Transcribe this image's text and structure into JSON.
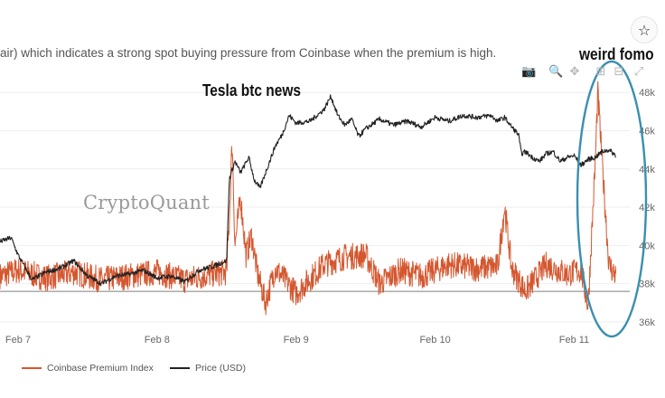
{
  "caption": "air) which indicates a strong spot buying pressure from Coinbase when the premium is high.",
  "star_icon": "☆",
  "annotations": {
    "tesla": "Tesla btc news",
    "fomo": "weird fomo"
  },
  "watermark": "CryptoQuant",
  "modebar": [
    "camera-icon",
    "zoom-icon",
    "pan-icon",
    "zoom-in-icon",
    "zoom-out-icon",
    "autoscale-icon"
  ],
  "colors": {
    "premium": "#d4572f",
    "price": "#222222",
    "baseline": "#7f7f7f",
    "oval": "#3a8fb0",
    "axis_text": "#666666"
  },
  "chart_data": {
    "type": "line",
    "x_ticks": [
      "Feb 7",
      "Feb 8",
      "Feb 9",
      "Feb 10",
      "Feb 11"
    ],
    "x_tick_days": [
      7,
      8,
      9,
      10,
      11
    ],
    "x_range": [
      6.87,
      11.4
    ],
    "y2_ticks": [
      "36k",
      "38k",
      "40k",
      "42k",
      "44k",
      "46k",
      "48k"
    ],
    "y2_tick_values": [
      36000,
      38000,
      40000,
      42000,
      44000,
      46000,
      48000
    ],
    "y2_range": [
      35900,
      48200
    ],
    "series": [
      {
        "name": "Coinbase Premium Index",
        "axis": "left",
        "baseline_level": 37600,
        "points": [
          [
            6.87,
            38.4
          ],
          [
            7.0,
            38.7
          ],
          [
            7.2,
            38.3
          ],
          [
            7.4,
            38.6
          ],
          [
            7.6,
            38.2
          ],
          [
            7.8,
            38.4
          ],
          [
            8.0,
            38.6
          ],
          [
            8.2,
            38.2
          ],
          [
            8.4,
            38.5
          ],
          [
            8.5,
            38.6
          ],
          [
            8.52,
            41.5
          ],
          [
            8.54,
            45.5
          ],
          [
            8.56,
            40.0
          ],
          [
            8.6,
            42.5
          ],
          [
            8.64,
            39.5
          ],
          [
            8.68,
            40.5
          ],
          [
            8.72,
            38.6
          ],
          [
            8.78,
            37.0
          ],
          [
            8.85,
            38.8
          ],
          [
            9.0,
            37.5
          ],
          [
            9.2,
            39.0
          ],
          [
            9.35,
            39.4
          ],
          [
            9.5,
            39.5
          ],
          [
            9.6,
            38.0
          ],
          [
            9.75,
            38.7
          ],
          [
            9.9,
            38.4
          ],
          [
            10.1,
            39.0
          ],
          [
            10.3,
            38.8
          ],
          [
            10.45,
            38.9
          ],
          [
            10.5,
            42.0
          ],
          [
            10.55,
            38.8
          ],
          [
            10.65,
            37.6
          ],
          [
            10.8,
            39.0
          ],
          [
            10.95,
            38.5
          ],
          [
            11.05,
            38.7
          ],
          [
            11.1,
            36.8
          ],
          [
            11.15,
            44.0
          ],
          [
            11.17,
            48.0
          ],
          [
            11.2,
            44.5
          ],
          [
            11.25,
            39.0
          ],
          [
            11.3,
            38.4
          ]
        ]
      },
      {
        "name": "Price (USD)",
        "axis": "right",
        "points": [
          [
            6.87,
            40.2
          ],
          [
            6.95,
            40.4
          ],
          [
            7.0,
            39.5
          ],
          [
            7.1,
            38.2
          ],
          [
            7.2,
            38.6
          ],
          [
            7.3,
            38.8
          ],
          [
            7.4,
            39.2
          ],
          [
            7.5,
            38.4
          ],
          [
            7.6,
            38.0
          ],
          [
            7.7,
            38.4
          ],
          [
            7.8,
            38.5
          ],
          [
            7.9,
            38.7
          ],
          [
            8.0,
            38.3
          ],
          [
            8.1,
            38.4
          ],
          [
            8.2,
            38.1
          ],
          [
            8.3,
            38.7
          ],
          [
            8.4,
            38.9
          ],
          [
            8.5,
            39.2
          ],
          [
            8.52,
            43.5
          ],
          [
            8.56,
            44.4
          ],
          [
            8.6,
            43.8
          ],
          [
            8.66,
            44.6
          ],
          [
            8.7,
            43.4
          ],
          [
            8.74,
            43.0
          ],
          [
            8.8,
            44.2
          ],
          [
            8.85,
            45.2
          ],
          [
            8.9,
            45.8
          ],
          [
            8.95,
            46.8
          ],
          [
            9.0,
            46.4
          ],
          [
            9.1,
            46.5
          ],
          [
            9.2,
            47.1
          ],
          [
            9.25,
            47.8
          ],
          [
            9.3,
            46.8
          ],
          [
            9.35,
            46.3
          ],
          [
            9.4,
            46.6
          ],
          [
            9.45,
            45.7
          ],
          [
            9.5,
            46.1
          ],
          [
            9.6,
            46.6
          ],
          [
            9.7,
            46.3
          ],
          [
            9.8,
            46.5
          ],
          [
            9.9,
            46.2
          ],
          [
            10.0,
            46.7
          ],
          [
            10.1,
            46.5
          ],
          [
            10.2,
            46.8
          ],
          [
            10.3,
            46.7
          ],
          [
            10.4,
            46.8
          ],
          [
            10.45,
            46.5
          ],
          [
            10.5,
            46.7
          ],
          [
            10.55,
            46.2
          ],
          [
            10.6,
            45.8
          ],
          [
            10.62,
            44.8
          ],
          [
            10.65,
            44.9
          ],
          [
            10.7,
            44.6
          ],
          [
            10.75,
            44.4
          ],
          [
            10.8,
            44.8
          ],
          [
            10.85,
            44.9
          ],
          [
            10.9,
            44.4
          ],
          [
            10.95,
            44.6
          ],
          [
            11.0,
            44.7
          ],
          [
            11.05,
            44.2
          ],
          [
            11.1,
            44.5
          ],
          [
            11.15,
            44.6
          ],
          [
            11.2,
            44.9
          ],
          [
            11.25,
            45.0
          ],
          [
            11.3,
            44.7
          ]
        ]
      }
    ],
    "legend": [
      "Coinbase Premium Index",
      "Price (USD)"
    ],
    "legend_position": "bottom-left"
  }
}
